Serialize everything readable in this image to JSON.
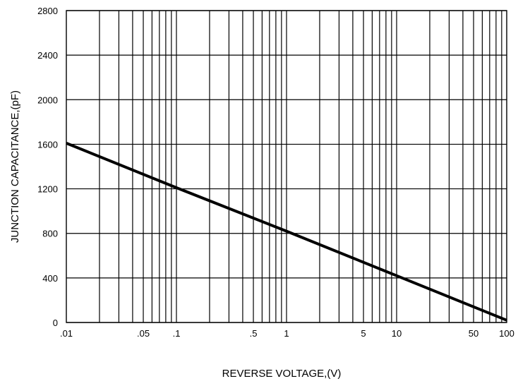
{
  "chart_data": {
    "type": "line",
    "x_scale": "log",
    "xlabel": "REVERSE VOLTAGE,(V)",
    "ylabel": "JUNCTION CAPACITANCE,(pF)",
    "xlim": [
      0.01,
      100
    ],
    "ylim": [
      0,
      2800
    ],
    "grid": true,
    "x_ticks": [
      {
        "value": 0.01,
        "label": ".01"
      },
      {
        "value": 0.05,
        "label": ".05"
      },
      {
        "value": 0.1,
        "label": ".1"
      },
      {
        "value": 0.5,
        "label": ".5"
      },
      {
        "value": 1,
        "label": "1"
      },
      {
        "value": 5,
        "label": "5"
      },
      {
        "value": 10,
        "label": "10"
      },
      {
        "value": 50,
        "label": "50"
      },
      {
        "value": 100,
        "label": "100"
      }
    ],
    "y_ticks": [
      {
        "value": 0,
        "label": "0"
      },
      {
        "value": 400,
        "label": "400"
      },
      {
        "value": 800,
        "label": "800"
      },
      {
        "value": 1200,
        "label": "1200"
      },
      {
        "value": 1600,
        "label": "1600"
      },
      {
        "value": 2000,
        "label": "2000"
      },
      {
        "value": 2400,
        "label": "2400"
      },
      {
        "value": 2800,
        "label": "2800"
      }
    ],
    "series": [
      {
        "x": [
          0.01,
          0.1,
          1,
          10,
          100
        ],
        "y": [
          1610,
          1210,
          820,
          420,
          20
        ],
        "color": "#000000"
      }
    ]
  }
}
